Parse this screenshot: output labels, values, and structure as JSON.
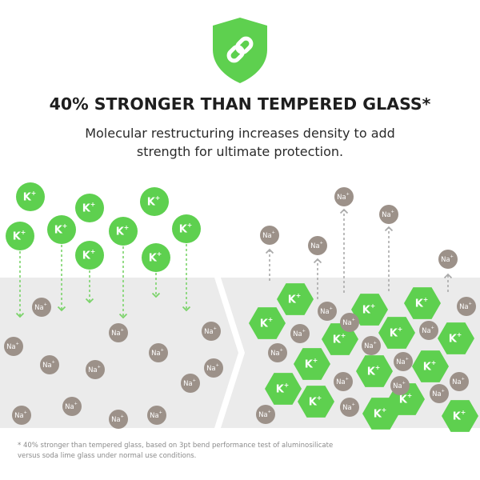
{
  "header": {
    "headline": "40% STRONGER THAN TEMPERED GLASS*",
    "subtitle_line1": "Molecular restructuring increases density to add",
    "subtitle_line2": "strength for ultimate protection."
  },
  "icon": "shield-link-icon",
  "ions": {
    "potassium_symbol": "K",
    "sodium_symbol": "Na",
    "charge": "+"
  },
  "footnote": {
    "line1": "* 40% stronger than tempered glass, based on 3pt bend performance test of aluminosilicate",
    "line2": "versus soda lime glass under normal use conditions."
  },
  "colors": {
    "green": "#5ed04f",
    "green_dark": "#4bbd3d",
    "sodium": "#9c9189",
    "glass": "#ebebeb",
    "arrow_green": "#7bd36a",
    "arrow_gray": "#aaaaaa"
  }
}
